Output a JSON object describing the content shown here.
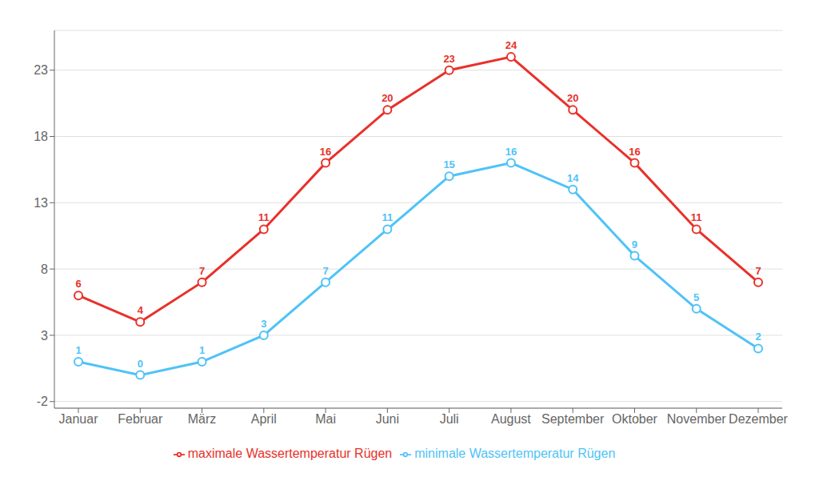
{
  "chart_data": {
    "type": "line",
    "categories": [
      "Januar",
      "Februar",
      "März",
      "April",
      "Mai",
      "Juni",
      "Juli",
      "August",
      "September",
      "Oktober",
      "November",
      "Dezember"
    ],
    "series": [
      {
        "name": "minimale Wassertemperatur Rügen",
        "color": "#4fc3f7",
        "values": [
          1,
          0,
          1,
          3,
          7,
          11,
          15,
          16,
          14,
          9,
          5,
          2
        ]
      },
      {
        "name": "maximale Wassertemperatur Rügen",
        "color": "#e8312a",
        "values": [
          6,
          4,
          7,
          11,
          16,
          20,
          23,
          24,
          20,
          16,
          11,
          7
        ]
      }
    ],
    "ylim": [
      -2.5,
      26
    ],
    "yticks": [
      -2,
      3,
      8,
      13,
      18,
      23
    ],
    "grid": true,
    "legend": "bottom",
    "data_labels": true,
    "marker": "circle"
  }
}
